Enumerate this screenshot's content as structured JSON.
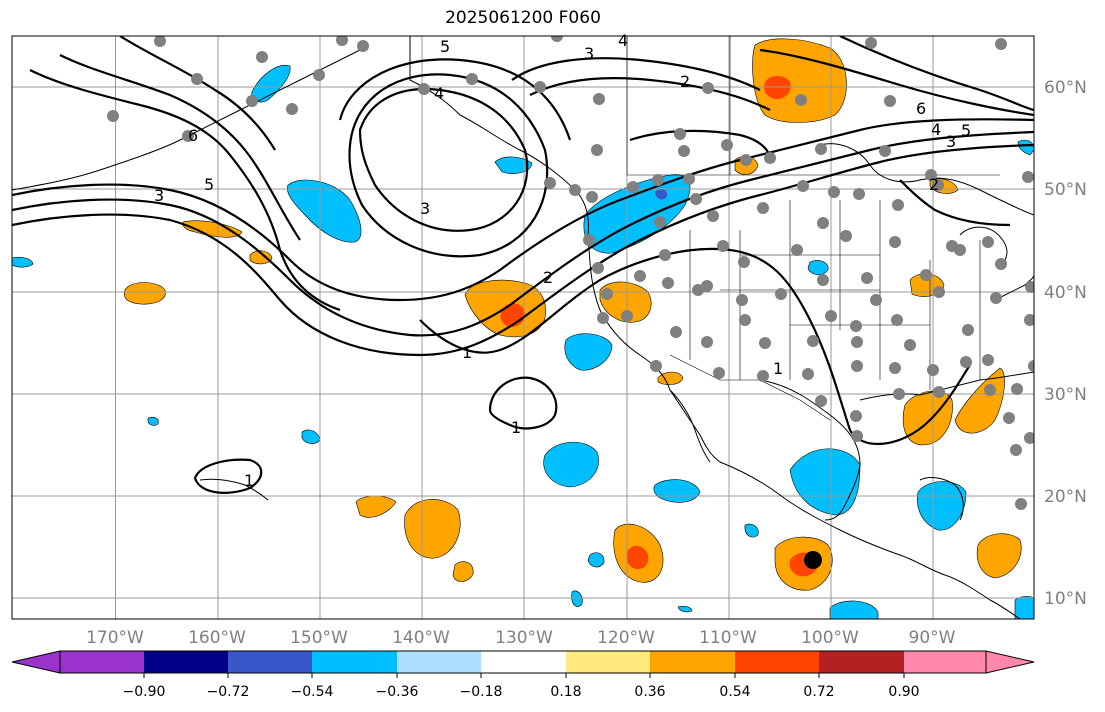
{
  "title": "2025061200 F060",
  "map": {
    "projection": "PlateCarree",
    "lon_range": [
      -180,
      -80
    ],
    "lat_range": [
      8,
      65
    ],
    "gridlines": true,
    "lon_ticks": [
      "170°W",
      "160°W",
      "150°W",
      "140°W",
      "130°W",
      "120°W",
      "110°W",
      "100°W",
      "90°W"
    ],
    "lat_ticks": [
      "10°N",
      "20°N",
      "30°N",
      "40°N",
      "50°N",
      "60°N"
    ],
    "contour_labels": [
      "1",
      "1",
      "1",
      "1",
      "2",
      "2",
      "2",
      "3",
      "3",
      "3",
      "3",
      "4",
      "4",
      "4",
      "5",
      "5",
      "5",
      "6",
      "6"
    ],
    "fill_colors": {
      "pos_1": "#ffea80",
      "pos_2": "#ffa500",
      "pos_3": "#ff4500",
      "neg_1": "#aedfff",
      "neg_2": "#00bfff",
      "neg_3": "#3a57c9"
    }
  },
  "colorbar": {
    "colors": [
      "#9933cc",
      "#000088",
      "#3a57c9",
      "#00bfff",
      "#aedfff",
      "#ffffff",
      "#ffea80",
      "#ffa500",
      "#ff4500",
      "#b22222",
      "#ff88aa"
    ],
    "ticks": [
      "−0.90",
      "−0.72",
      "−0.54",
      "−0.36",
      "−0.18",
      "0.18",
      "0.36",
      "0.54",
      "0.72",
      "0.90"
    ],
    "extend": "both"
  }
}
